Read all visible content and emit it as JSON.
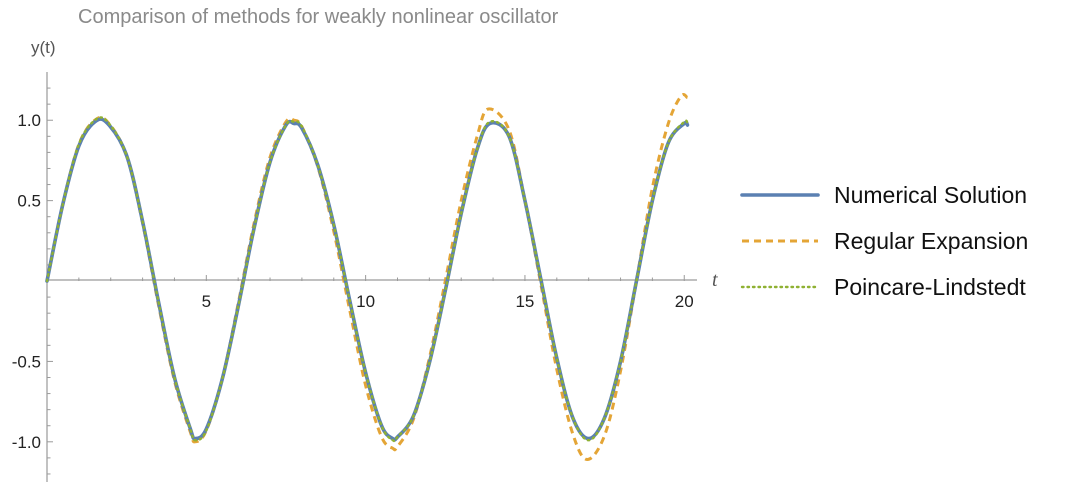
{
  "chart_data": {
    "type": "line",
    "title": "Comparison of methods for weakly nonlinear oscillator",
    "xlabel": "t",
    "ylabel": "y(t)",
    "xlim": [
      0,
      20.4
    ],
    "ylim": [
      -1.25,
      1.3
    ],
    "x_ticks": [
      5,
      10,
      15,
      20
    ],
    "x_tick_labels": [
      "5",
      "10",
      "15",
      "20"
    ],
    "y_ticks": [
      -1.0,
      -0.5,
      0.5,
      1.0
    ],
    "y_tick_labels": [
      "-1.0",
      "-0.5",
      "0.5",
      "1.0"
    ],
    "grid": false,
    "legend_position": "right",
    "series": [
      {
        "name": "Numerical Solution",
        "color": "#5b80b2",
        "style": "solid",
        "x": [
          0,
          0.5,
          1,
          1.5,
          1.9,
          2.5,
          3,
          3.5,
          4,
          4.5,
          4.65,
          5,
          5.5,
          6,
          6.5,
          7,
          7.5,
          7.75,
          8,
          8.5,
          9,
          9.5,
          10,
          10.5,
          10.85,
          11,
          11.5,
          12,
          12.5,
          13,
          13.5,
          13.9,
          14.5,
          15,
          15.5,
          16,
          16.5,
          17,
          17.5,
          18,
          18.5,
          19,
          19.5,
          20,
          20.1
        ],
        "y": [
          0,
          0.48,
          0.84,
          0.99,
          0.98,
          0.78,
          0.37,
          -0.13,
          -0.6,
          -0.92,
          -0.98,
          -0.92,
          -0.61,
          -0.16,
          0.33,
          0.74,
          0.97,
          0.98,
          0.95,
          0.72,
          0.35,
          -0.12,
          -0.57,
          -0.9,
          -0.98,
          -0.97,
          -0.84,
          -0.51,
          -0.06,
          0.42,
          0.82,
          0.98,
          0.9,
          0.5,
          0.01,
          -0.48,
          -0.85,
          -0.98,
          -0.85,
          -0.5,
          0.0,
          0.5,
          0.86,
          0.98,
          0.97
        ]
      },
      {
        "name": "Regular Expansion",
        "color": "#e4a536",
        "style": "dashed",
        "x": [
          0,
          0.5,
          1,
          1.5,
          1.9,
          2.5,
          3,
          3.5,
          4,
          4.5,
          4.65,
          5,
          5.5,
          6,
          6.5,
          7,
          7.5,
          7.75,
          8,
          8.5,
          9,
          9.5,
          10,
          10.5,
          10.85,
          11,
          11.5,
          12,
          12.5,
          13,
          13.5,
          13.85,
          14.5,
          15,
          15.5,
          16,
          16.5,
          16.95,
          17.5,
          18,
          18.5,
          19,
          19.5,
          19.9,
          20.1
        ],
        "y": [
          0,
          0.48,
          0.85,
          1.0,
          0.99,
          0.78,
          0.36,
          -0.15,
          -0.62,
          -0.94,
          -1.0,
          -0.93,
          -0.61,
          -0.14,
          0.36,
          0.77,
          0.99,
          1.0,
          0.96,
          0.71,
          0.31,
          -0.18,
          -0.65,
          -0.97,
          -1.04,
          -1.03,
          -0.86,
          -0.48,
          0.0,
          0.5,
          0.9,
          1.07,
          0.94,
          0.5,
          -0.02,
          -0.55,
          -0.95,
          -1.11,
          -0.96,
          -0.56,
          0.0,
          0.58,
          0.98,
          1.15,
          1.14
        ]
      },
      {
        "name": "Poincare-Lindstedt",
        "color": "#8fb132",
        "style": "dotted",
        "x": [
          0,
          0.5,
          1,
          1.5,
          1.9,
          2.5,
          3,
          3.5,
          4,
          4.5,
          4.65,
          5,
          5.5,
          6,
          6.5,
          7,
          7.5,
          7.75,
          8,
          8.5,
          9,
          9.5,
          10,
          10.5,
          10.85,
          11,
          11.5,
          12,
          12.5,
          13,
          13.5,
          13.9,
          14.5,
          15,
          15.5,
          16,
          16.5,
          17,
          17.5,
          18,
          18.5,
          19,
          19.5,
          20,
          20.1
        ],
        "y": [
          0,
          0.48,
          0.85,
          1.0,
          0.99,
          0.78,
          0.37,
          -0.13,
          -0.6,
          -0.92,
          -0.99,
          -0.93,
          -0.61,
          -0.16,
          0.33,
          0.74,
          0.97,
          0.99,
          0.96,
          0.72,
          0.35,
          -0.12,
          -0.57,
          -0.9,
          -0.99,
          -0.97,
          -0.84,
          -0.51,
          -0.06,
          0.42,
          0.82,
          0.99,
          0.9,
          0.5,
          0.01,
          -0.48,
          -0.85,
          -0.99,
          -0.85,
          -0.5,
          0.0,
          0.5,
          0.86,
          0.99,
          0.98
        ]
      }
    ]
  }
}
